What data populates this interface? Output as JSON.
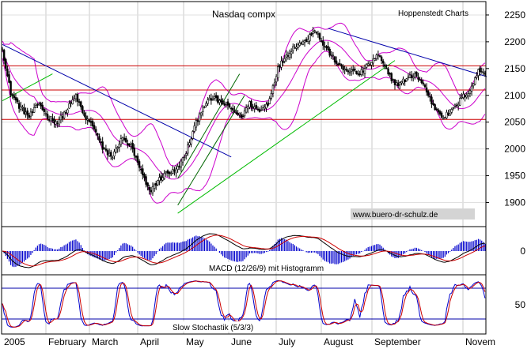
{
  "chart_data": [
    {
      "type": "candlestick",
      "title": "Nasdaq compx",
      "source_label": "Hoppenstedt Charts",
      "watermark": "www.buero-dr-schulz.de",
      "y_ticks": [
        1900,
        1950,
        2000,
        2050,
        2100,
        2150,
        2200,
        2250
      ],
      "ylim": [
        1855,
        2275
      ],
      "x_labels": [
        "2005",
        "February",
        "March",
        "April",
        "May",
        "June",
        "July",
        "August",
        "September",
        "Novem"
      ],
      "horizontal_lines": [
        2155,
        2110,
        2055
      ],
      "price_anchors": [
        [
          0,
          2190
        ],
        [
          2,
          2150
        ],
        [
          5,
          2105
        ],
        [
          10,
          2080
        ],
        [
          16,
          2060
        ],
        [
          22,
          2085
        ],
        [
          27,
          2060
        ],
        [
          33,
          2050
        ],
        [
          38,
          2070
        ],
        [
          44,
          2100
        ],
        [
          49,
          2060
        ],
        [
          55,
          2040
        ],
        [
          60,
          2000
        ],
        [
          66,
          1985
        ],
        [
          71,
          2020
        ],
        [
          77,
          2005
        ],
        [
          82,
          1965
        ],
        [
          88,
          1920
        ],
        [
          93,
          1940
        ],
        [
          98,
          1955
        ],
        [
          104,
          1960
        ],
        [
          109,
          1985
        ],
        [
          115,
          2040
        ],
        [
          120,
          2080
        ],
        [
          126,
          2095
        ],
        [
          132,
          2085
        ],
        [
          137,
          2075
        ],
        [
          143,
          2060
        ],
        [
          148,
          2085
        ],
        [
          154,
          2070
        ],
        [
          159,
          2085
        ],
        [
          165,
          2150
        ],
        [
          170,
          2175
        ],
        [
          176,
          2195
        ],
        [
          181,
          2200
        ],
        [
          187,
          2225
        ],
        [
          192,
          2195
        ],
        [
          198,
          2170
        ],
        [
          203,
          2150
        ],
        [
          209,
          2145
        ],
        [
          214,
          2140
        ],
        [
          220,
          2160
        ],
        [
          225,
          2175
        ],
        [
          231,
          2140
        ],
        [
          236,
          2120
        ],
        [
          242,
          2130
        ],
        [
          247,
          2140
        ],
        [
          253,
          2115
        ],
        [
          258,
          2080
        ],
        [
          264,
          2060
        ],
        [
          269,
          2070
        ],
        [
          275,
          2095
        ],
        [
          280,
          2110
        ],
        [
          285,
          2145
        ]
      ],
      "trendlines": [
        {
          "color": "#0000aa",
          "from": [
            0,
            2195
          ],
          "to": [
            137,
            1985
          ]
        },
        {
          "color": "#0000aa",
          "from": [
            195,
            2225
          ],
          "to": [
            290,
            2135
          ]
        },
        {
          "color": "#00bb00",
          "from": [
            0,
            2090
          ],
          "to": [
            30,
            2140
          ]
        },
        {
          "color": "#00bb00",
          "from": [
            105,
            1880
          ],
          "to": [
            235,
            2165
          ]
        },
        {
          "color": "#006600",
          "from": [
            105,
            1895
          ],
          "to": [
            145,
            2100
          ]
        },
        {
          "color": "#006600",
          "from": [
            105,
            1945
          ],
          "to": [
            142,
            2140
          ]
        }
      ],
      "colors": {
        "candle": "#000000",
        "bollinger": "#cc00cc",
        "horizontal": "#cc0000",
        "sma": "#0000aa"
      }
    },
    {
      "type": "histogram",
      "label": "MACD (12/26/9) mit Histogramm",
      "y_ticks": [
        0
      ],
      "colors": {
        "histogram": "#0000cc",
        "macd": "#000000",
        "signal": "#cc0000"
      }
    },
    {
      "type": "line",
      "label": "Slow Stochastik (5/3/3)",
      "y_ticks": [
        50
      ],
      "levels": [
        80,
        20
      ],
      "colors": {
        "k": "#0000cc",
        "d": "#cc0000",
        "level": "#0000aa"
      }
    }
  ]
}
